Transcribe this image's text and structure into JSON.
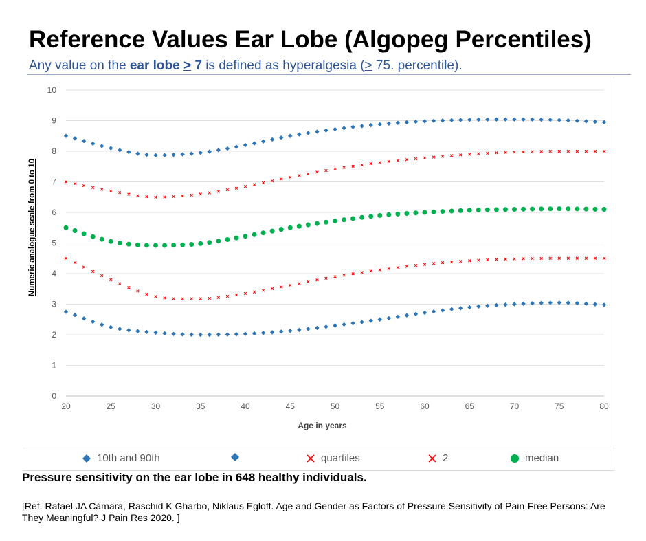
{
  "header": {
    "title": "Reference Values Ear Lobe (Algopeg Percentiles)",
    "subtitle_part1": "Any value on the ",
    "subtitle_bold": "ear lobe ",
    "subtitle_bold_ge": ">",
    "subtitle_bold_num": " 7",
    "subtitle_part2": " is defined as hyperalgesia (",
    "subtitle_ge": ">",
    "subtitle_part3": " 75. percentile)."
  },
  "chart_data": {
    "type": "scatter",
    "xlabel": "Age in years",
    "ylabel": "Numeric analogue scale from 0 to 10",
    "xlim": [
      20,
      80
    ],
    "ylim": [
      0,
      10
    ],
    "x_ticks": [
      "20",
      "25",
      "30",
      "35",
      "40",
      "45",
      "50",
      "55",
      "60",
      "65",
      "70",
      "75",
      "80"
    ],
    "y_ticks": [
      "0",
      "1",
      "2",
      "3",
      "4",
      "5",
      "6",
      "7",
      "8",
      "9",
      "10"
    ],
    "grid": "horizontal",
    "legend_position": "bottom",
    "x": [
      20,
      25,
      30,
      35,
      40,
      45,
      50,
      55,
      60,
      65,
      70,
      75,
      80
    ],
    "series": [
      {
        "name": "10th and 90th",
        "marker": "diamond",
        "color": "#2e75b6",
        "values": [
          8.5,
          8.1,
          7.87,
          7.95,
          8.2,
          8.5,
          8.72,
          8.88,
          8.98,
          9.03,
          9.04,
          9.02,
          8.95
        ]
      },
      {
        "name": "",
        "marker": "diamond",
        "color": "#2e75b6",
        "values": [
          2.75,
          2.25,
          2.07,
          2.0,
          2.03,
          2.13,
          2.3,
          2.5,
          2.72,
          2.9,
          3.0,
          3.05,
          2.98
        ]
      },
      {
        "name": "quartiles",
        "marker": "cross",
        "color": "#ff0000",
        "values": [
          7.0,
          6.7,
          6.5,
          6.6,
          6.85,
          7.15,
          7.42,
          7.63,
          7.78,
          7.9,
          7.97,
          8.0,
          8.0
        ]
      },
      {
        "name": "2",
        "marker": "cross",
        "color": "#ff0000",
        "values": [
          4.5,
          3.8,
          3.25,
          3.18,
          3.35,
          3.62,
          3.9,
          4.12,
          4.3,
          4.42,
          4.48,
          4.5,
          4.5
        ]
      },
      {
        "name": "median",
        "marker": "circle",
        "color": "#00b050",
        "values": [
          5.5,
          5.05,
          4.92,
          4.98,
          5.22,
          5.5,
          5.72,
          5.9,
          6.0,
          6.07,
          6.1,
          6.12,
          6.1
        ]
      }
    ]
  },
  "caption": "Pressure sensitivity on the ear lobe in 648 healthy individuals.",
  "reference": "[Ref: Rafael JA Cámara, Raschid K Gharbo, Niklaus Egloff. Age and Gender as Factors of Pressure Sensitivity of Pain-Free Persons: Are They Meaningful? J Pain Res 2020. ]"
}
